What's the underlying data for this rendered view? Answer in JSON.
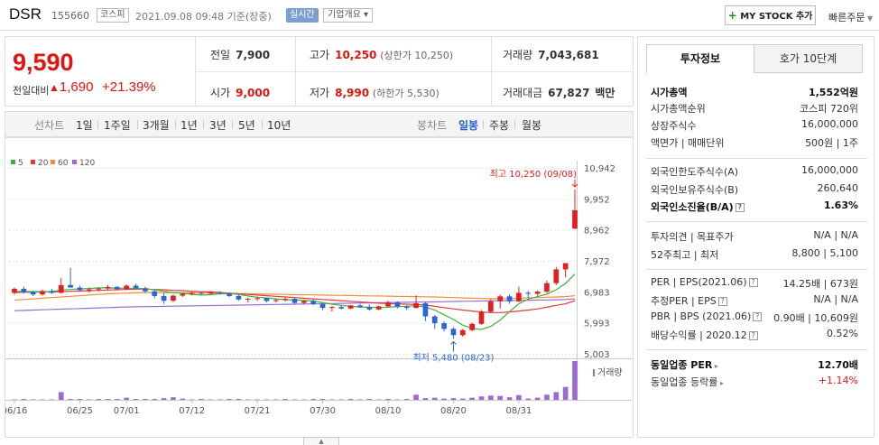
{
  "header": {
    "name": "DSR",
    "code": "155660",
    "market": "코스피",
    "datetime": "2021.09.08 09:48 기준(장중)",
    "realtime": "실시간",
    "company_info": "기업개요",
    "my_stock": "MY STOCK 추가",
    "quick_order": "빠른주문"
  },
  "price": {
    "current": "9,590",
    "compare_label": "전일대비",
    "compare_value": "1,690",
    "compare_rate": "+21.39%"
  },
  "summary": {
    "prev_close_label": "전일",
    "prev_close": "7,900",
    "open_label": "시가",
    "open": "9,000",
    "high_label": "고가",
    "high": "10,250",
    "high_sub": "(상한가 10,250)",
    "low_label": "저가",
    "low": "8,990",
    "low_sub": "(하한가 5,530)",
    "volume_label": "거래량",
    "volume": "7,043,681",
    "amount_label": "거래대금",
    "amount": "67,827",
    "amount_unit": "백만"
  },
  "period_tabs": {
    "line_label": "선차트",
    "line": [
      "1일",
      "1주일",
      "3개월",
      "1년",
      "3년",
      "5년",
      "10년"
    ],
    "candle_label": "봉차트",
    "candle": [
      "일봉",
      "주봉",
      "월봉"
    ],
    "active_candle": "일봉"
  },
  "chart_data": {
    "type": "candlestick",
    "legend": [
      "5",
      "20",
      "60",
      "120"
    ],
    "legend_colors": [
      "#3bb33b",
      "#e23a3a",
      "#f09030",
      "#9b6cd0"
    ],
    "y_ticks": [
      "10,942",
      "9,952",
      "8,962",
      "7,972",
      "6,983",
      "5,993",
      "5,003"
    ],
    "ylim": [
      5003,
      10942
    ],
    "x_labels": [
      "06/16",
      "06/25",
      "07/01",
      "07/12",
      "07/21",
      "07/30",
      "08/10",
      "08/20",
      "08/31"
    ],
    "annotation_high": "최고 10,250 (09/08)",
    "annotation_low": "최저 5,480 (08/23)",
    "volume_label": "거래량",
    "candles": [
      [
        6950,
        7120,
        6900,
        7080
      ],
      [
        7080,
        7150,
        6930,
        6980
      ],
      [
        6980,
        7020,
        6850,
        6900
      ],
      [
        6900,
        7050,
        6860,
        7010
      ],
      [
        7010,
        7080,
        6920,
        6950
      ],
      [
        6950,
        7420,
        6930,
        7200
      ],
      [
        7200,
        7750,
        7150,
        7120
      ],
      [
        7120,
        7180,
        6990,
        7040
      ],
      [
        7040,
        7120,
        6960,
        7060
      ],
      [
        7060,
        7120,
        7000,
        7090
      ],
      [
        7090,
        7200,
        7030,
        7140
      ],
      [
        7140,
        7170,
        7030,
        7070
      ],
      [
        7070,
        7220,
        7050,
        7180
      ],
      [
        7180,
        7240,
        7060,
        7100
      ],
      [
        7100,
        7150,
        6950,
        7000
      ],
      [
        7000,
        7050,
        6780,
        6850
      ],
      [
        6850,
        6950,
        6600,
        6700
      ],
      [
        6700,
        6900,
        6650,
        6860
      ],
      [
        6860,
        6950,
        6820,
        6920
      ],
      [
        6920,
        6990,
        6870,
        6950
      ],
      [
        6950,
        7000,
        6880,
        6930
      ],
      [
        6930,
        6990,
        6890,
        6970
      ],
      [
        6970,
        7010,
        6900,
        6940
      ],
      [
        6940,
        6960,
        6820,
        6850
      ],
      [
        6850,
        6900,
        6700,
        6740
      ],
      [
        6740,
        6800,
        6650,
        6760
      ],
      [
        6760,
        6830,
        6700,
        6780
      ],
      [
        6780,
        6790,
        6650,
        6690
      ],
      [
        6690,
        6760,
        6640,
        6720
      ],
      [
        6720,
        6800,
        6680,
        6760
      ],
      [
        6760,
        6790,
        6600,
        6630
      ],
      [
        6630,
        6720,
        6580,
        6690
      ],
      [
        6690,
        6750,
        6560,
        6590
      ],
      [
        6590,
        6620,
        6400,
        6470
      ],
      [
        6470,
        6520,
        6360,
        6500
      ],
      [
        6500,
        6560,
        6420,
        6450
      ],
      [
        6450,
        6560,
        6430,
        6550
      ],
      [
        6550,
        6600,
        6470,
        6500
      ],
      [
        6500,
        6580,
        6380,
        6420
      ],
      [
        6420,
        6540,
        6400,
        6520
      ],
      [
        6520,
        6700,
        6490,
        6650
      ],
      [
        6650,
        6680,
        6450,
        6510
      ],
      [
        6510,
        6560,
        6400,
        6470
      ],
      [
        6470,
        6870,
        6450,
        6620
      ],
      [
        6620,
        6660,
        6050,
        6200
      ],
      [
        6200,
        6250,
        5800,
        5980
      ],
      [
        5980,
        6040,
        5720,
        5800
      ],
      [
        5800,
        5850,
        5480,
        5600
      ],
      [
        5600,
        5800,
        5550,
        5760
      ],
      [
        5760,
        6000,
        5730,
        5960
      ],
      [
        5960,
        6400,
        5930,
        6350
      ],
      [
        6350,
        6750,
        6300,
        6680
      ],
      [
        6680,
        6900,
        6450,
        6840
      ],
      [
        6840,
        6900,
        6600,
        6680
      ],
      [
        6680,
        7150,
        6650,
        6950
      ],
      [
        6950,
        7020,
        6780,
        6920
      ],
      [
        6920,
        7030,
        6860,
        6990
      ],
      [
        6990,
        7350,
        6940,
        7260
      ],
      [
        7260,
        7780,
        7200,
        7700
      ],
      [
        7700,
        7900,
        7450,
        7900
      ],
      [
        9000,
        10250,
        8990,
        9590
      ]
    ],
    "volumes": [
      0.01,
      0.02,
      0.01,
      0.01,
      0.01,
      0.18,
      0.02,
      0.02,
      0.01,
      0.02,
      0.02,
      0.02,
      0.05,
      0.02,
      0.02,
      0.02,
      0.04,
      0.06,
      0.03,
      0.01,
      0.02,
      0.01,
      0.01,
      0.02,
      0.02,
      0.01,
      0.01,
      0.01,
      0.01,
      0.02,
      0.01,
      0.01,
      0.02,
      0.02,
      0.01,
      0.01,
      0.02,
      0.01,
      0.02,
      0.01,
      0.02,
      0.01,
      0.02,
      0.12,
      0.04,
      0.05,
      0.03,
      0.04,
      0.03,
      0.05,
      0.08,
      0.1,
      0.09,
      0.06,
      0.11,
      0.03,
      0.05,
      0.12,
      0.18,
      0.3,
      0.9
    ],
    "ma5": [
      6990,
      7000,
      6990,
      6990,
      6990,
      7040,
      7060,
      7080,
      7090,
      7110,
      7110,
      7100,
      7100,
      7100,
      7080,
      7050,
      7000,
      6960,
      6940,
      6900,
      6880,
      6890,
      6920,
      6930,
      6900,
      6850,
      6810,
      6790,
      6760,
      6730,
      6720,
      6710,
      6690,
      6640,
      6590,
      6550,
      6520,
      6500,
      6490,
      6480,
      6490,
      6510,
      6520,
      6540,
      6500,
      6400,
      6250,
      6100,
      5920,
      5820,
      5780,
      5880,
      6080,
      6350,
      6600,
      6750,
      6830,
      6910,
      7050,
      7250,
      7550
    ],
    "ma20": [
      6960,
      6970,
      6970,
      6980,
      6980,
      6990,
      7000,
      7010,
      7020,
      7030,
      7040,
      7050,
      7060,
      7070,
      7070,
      7060,
      7050,
      7030,
      7020,
      7000,
      6990,
      6980,
      6960,
      6940,
      6920,
      6900,
      6880,
      6860,
      6840,
      6820,
      6800,
      6780,
      6760,
      6740,
      6720,
      6700,
      6680,
      6660,
      6640,
      6620,
      6610,
      6600,
      6590,
      6580,
      6560,
      6520,
      6480,
      6440,
      6400,
      6370,
      6340,
      6320,
      6320,
      6340,
      6370,
      6400,
      6440,
      6490,
      6550,
      6600,
      6700
    ],
    "ma60": [
      6720,
      6740,
      6760,
      6780,
      6800,
      6820,
      6840,
      6860,
      6880,
      6900,
      6920,
      6930,
      6940,
      6950,
      6960,
      6960,
      6960,
      6960,
      6955,
      6950,
      6945,
      6940,
      6935,
      6930,
      6925,
      6920,
      6915,
      6910,
      6905,
      6900,
      6895,
      6890,
      6885,
      6880,
      6875,
      6870,
      6865,
      6860,
      6855,
      6850,
      6845,
      6840,
      6835,
      6830,
      6825,
      6820,
      6810,
      6800,
      6790,
      6780,
      6770,
      6765,
      6765,
      6770,
      6780,
      6790,
      6800,
      6810,
      6820,
      6830,
      6860
    ],
    "ma120": [
      6380,
      6390,
      6400,
      6410,
      6420,
      6430,
      6440,
      6450,
      6460,
      6470,
      6480,
      6490,
      6500,
      6505,
      6510,
      6515,
      6520,
      6525,
      6530,
      6535,
      6540,
      6545,
      6550,
      6555,
      6560,
      6565,
      6570,
      6575,
      6580,
      6585,
      6590,
      6595,
      6600,
      6605,
      6610,
      6615,
      6620,
      6625,
      6630,
      6635,
      6640,
      6645,
      6650,
      6655,
      6660,
      6665,
      6670,
      6675,
      6680,
      6685,
      6690,
      6695,
      6700,
      6705,
      6710,
      6715,
      6720,
      6725,
      6730,
      6740,
      6760
    ]
  },
  "right_panel": {
    "tab_active": "투자정보",
    "tab_other": "호가 10단계",
    "rows1": [
      {
        "k": "시가총액",
        "v": "1,552억원"
      },
      {
        "k": "시가총액순위",
        "v": "코스피 720위"
      },
      {
        "k": "상장주식수",
        "v": "16,000,000"
      },
      {
        "k": "액면가 | 매매단위",
        "v": "500원 | 1주"
      }
    ],
    "rows2": [
      {
        "k": "외국인한도주식수(A)",
        "v": "16,000,000"
      },
      {
        "k": "외국인보유주식수(B)",
        "v": "260,640"
      },
      {
        "k": "외국인소진율(B/A)",
        "v": "1.63%"
      }
    ],
    "rows3": [
      {
        "k": "투자의견 | 목표주가",
        "v": "N/A | N/A"
      },
      {
        "k": "52주최고 | 최저",
        "v": "8,800 | 5,100"
      }
    ],
    "rows4": [
      {
        "k": "PER | EPS(2021.06)",
        "v": "14.25배 | 673원"
      },
      {
        "k": "추정PER | EPS",
        "v": "N/A | N/A"
      },
      {
        "k": "PBR | BPS (2021.06)",
        "v": "0.90배 | 10,609원"
      },
      {
        "k": "배당수익률 | 2020.12",
        "v": "0.52%"
      }
    ],
    "rows5": [
      {
        "k": "동일업종 PER",
        "v": "12.70배"
      },
      {
        "k": "동일업종 등락률",
        "v": "+1.14%"
      }
    ]
  }
}
